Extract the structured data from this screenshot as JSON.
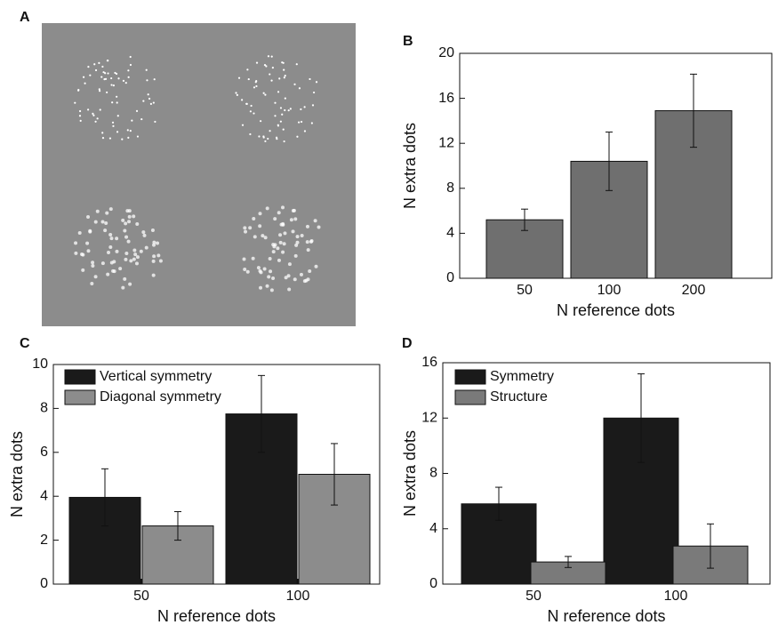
{
  "chart_data": [
    {
      "type": "image",
      "panel_label": "A"
    },
    {
      "type": "bar",
      "panel_label": "B",
      "xlabel": "N reference dots",
      "ylabel": "N extra dots",
      "categories": [
        "50",
        "100",
        "200"
      ],
      "values": [
        5.2,
        10.4,
        14.9
      ],
      "errors": [
        0.95,
        2.6,
        3.25
      ],
      "color": "#6f6f6f",
      "ylim": [
        0,
        20
      ],
      "yticks": [
        0,
        4,
        8,
        12,
        16,
        20
      ]
    },
    {
      "type": "grouped_bar",
      "panel_label": "C",
      "xlabel": "N reference dots",
      "ylabel": "N extra dots",
      "categories": [
        "50",
        "100"
      ],
      "legend": "upper left",
      "series": [
        {
          "name": "Vertical symmetry",
          "color": "#1a1a1a",
          "values": [
            3.95,
            7.75
          ],
          "errors": [
            1.3,
            1.75
          ]
        },
        {
          "name": "Diagonal symmetry",
          "color": "#8c8c8c",
          "values": [
            2.65,
            5.0
          ],
          "errors": [
            0.65,
            1.4
          ]
        }
      ],
      "ylim": [
        0,
        10
      ],
      "yticks": [
        0,
        2,
        4,
        6,
        8,
        10
      ]
    },
    {
      "type": "grouped_bar",
      "panel_label": "D",
      "xlabel": "N reference dots",
      "ylabel": "N extra dots",
      "categories": [
        "50",
        "100"
      ],
      "legend": "upper left",
      "series": [
        {
          "name": "Symmetry",
          "color": "#1a1a1a",
          "values": [
            5.8,
            12.0
          ],
          "errors": [
            1.2,
            3.2
          ]
        },
        {
          "name": "Structure",
          "color": "#7a7a7a",
          "values": [
            1.6,
            2.75
          ],
          "errors": [
            0.4,
            1.6
          ]
        }
      ],
      "ylim": [
        0,
        16
      ],
      "yticks": [
        0,
        4,
        8,
        12,
        16
      ]
    }
  ]
}
